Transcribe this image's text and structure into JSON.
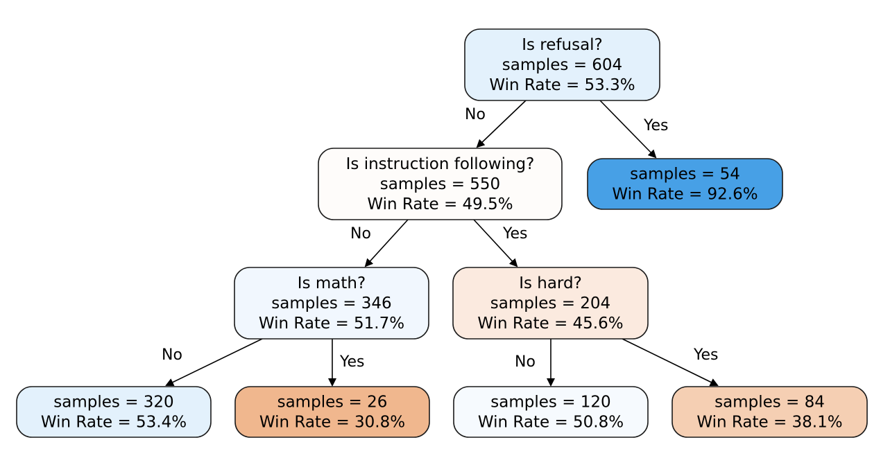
{
  "tree": {
    "nodes": [
      {
        "id": "root",
        "lines": [
          "Is refusal?",
          "samples = 604",
          "Win Rate = 53.3%"
        ],
        "fill": "#e3f1fc"
      },
      {
        "id": "instr",
        "lines": [
          "Is instruction following?",
          "samples = 550",
          "Win Rate = 49.5%"
        ],
        "fill": "#fefcfa"
      },
      {
        "id": "refusal-yes",
        "lines": [
          "samples = 54",
          "Win Rate = 92.6%"
        ],
        "fill": "#47a0e6"
      },
      {
        "id": "math",
        "lines": [
          "Is math?",
          "samples = 346",
          "Win Rate = 51.7%"
        ],
        "fill": "#f1f7fe"
      },
      {
        "id": "hard",
        "lines": [
          "Is hard?",
          "samples = 204",
          "Win Rate = 45.6%"
        ],
        "fill": "#fbeadf"
      },
      {
        "id": "math-no",
        "lines": [
          "samples = 320",
          "Win Rate = 53.4%"
        ],
        "fill": "#e3f1fc"
      },
      {
        "id": "math-yes",
        "lines": [
          "samples = 26",
          "Win Rate = 30.8%"
        ],
        "fill": "#f0b78e"
      },
      {
        "id": "hard-no",
        "lines": [
          "samples = 120",
          "Win Rate = 50.8%"
        ],
        "fill": "#f6fafe"
      },
      {
        "id": "hard-yes",
        "lines": [
          "samples = 84",
          "Win Rate = 38.1%"
        ],
        "fill": "#f5cfb3"
      }
    ],
    "edges": [
      {
        "from": "root",
        "to": "instr",
        "label": "No"
      },
      {
        "from": "root",
        "to": "refusal-yes",
        "label": "Yes"
      },
      {
        "from": "instr",
        "to": "math",
        "label": "No"
      },
      {
        "from": "instr",
        "to": "hard",
        "label": "Yes"
      },
      {
        "from": "math",
        "to": "math-no",
        "label": "No"
      },
      {
        "from": "math",
        "to": "math-yes",
        "label": "Yes"
      },
      {
        "from": "hard",
        "to": "hard-no",
        "label": "No"
      },
      {
        "from": "hard",
        "to": "hard-yes",
        "label": "Yes"
      }
    ]
  }
}
